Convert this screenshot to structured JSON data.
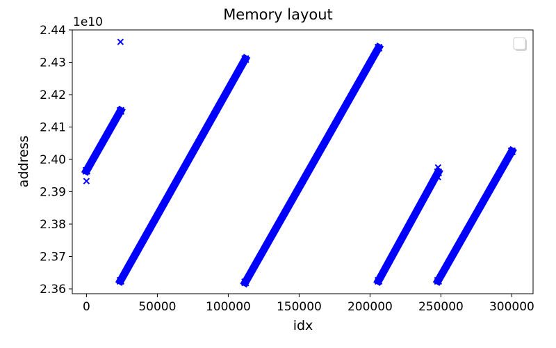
{
  "chart_data": {
    "type": "scatter",
    "title": "Memory layout",
    "xlabel": "idx",
    "ylabel": "address",
    "y_offset_label": "1e10",
    "xlim": [
      -10000,
      315000
    ],
    "ylim": [
      2.3585,
      2.44
    ],
    "xticks": [
      0,
      50000,
      100000,
      150000,
      200000,
      250000,
      300000
    ],
    "xtick_labels": [
      "0",
      "50000",
      "100000",
      "150000",
      "200000",
      "250000",
      "300000"
    ],
    "yticks": [
      2.36,
      2.37,
      2.38,
      2.39,
      2.4,
      2.41,
      2.42,
      2.43,
      2.44
    ],
    "ytick_labels": [
      "2.36",
      "2.37",
      "2.38",
      "2.39",
      "2.40",
      "2.41",
      "2.42",
      "2.43",
      "2.44"
    ],
    "marker": "x",
    "color": "#0000ff",
    "legend": "top-right, empty",
    "grid": false,
    "segments": [
      {
        "x": [
          0,
          24000
        ],
        "y": [
          2.3965,
          2.415
        ]
      },
      {
        "x": [
          24000,
          112000
        ],
        "y": [
          2.3625,
          2.431
        ]
      },
      {
        "x": [
          112000,
          206000
        ],
        "y": [
          2.362,
          2.4345
        ]
      },
      {
        "x": [
          206000,
          248000
        ],
        "y": [
          2.3625,
          2.396
        ]
      },
      {
        "x": [
          248000,
          300000
        ],
        "y": [
          2.3625,
          2.4025
        ]
      }
    ],
    "points": [
      {
        "x": 0,
        "y": 2.3933
      },
      {
        "x": 24000,
        "y": 2.4363
      },
      {
        "x": 248000,
        "y": 2.3975
      },
      {
        "x": 248000,
        "y": 2.3945
      }
    ]
  }
}
